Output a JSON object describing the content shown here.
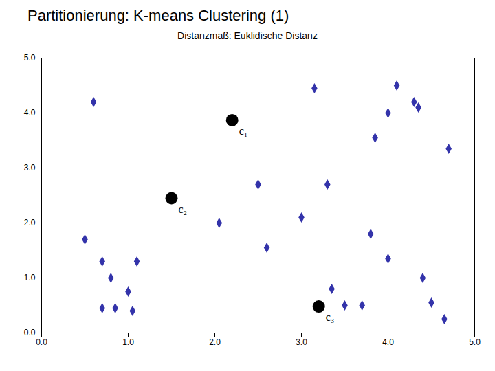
{
  "chart_data": {
    "type": "scatter",
    "title": "Partitionierung: K-means Clustering (1)",
    "subtitle": "Distanzmaß: Euklidische Distanz",
    "series": [
      {
        "color": "#3333AA",
        "marker": "diamond",
        "x": [
          0.5,
          0.7,
          0.8,
          0.7,
          0.85,
          1.0,
          1.05,
          1.1,
          0.6,
          2.05,
          2.5,
          2.6,
          3.0,
          3.15,
          3.3,
          3.35,
          3.5,
          3.7,
          3.8,
          3.85,
          4.0,
          4.0,
          4.1,
          4.3,
          4.35,
          4.4,
          4.5,
          4.7,
          4.65
        ],
        "y": [
          1.7,
          1.3,
          1.0,
          0.45,
          0.45,
          0.75,
          0.4,
          1.3,
          4.2,
          2.0,
          2.7,
          1.55,
          2.1,
          4.45,
          2.7,
          0.8,
          0.5,
          0.5,
          1.8,
          3.55,
          4.0,
          1.35,
          4.5,
          4.2,
          4.1,
          1.0,
          0.55,
          3.35,
          0.25
        ]
      },
      {
        "color": "#000000",
        "marker": "circle",
        "x": [
          2.2,
          1.5,
          3.2
        ],
        "y": [
          3.87,
          2.45,
          0.48
        ],
        "labels": [
          "c₁",
          "c₂",
          "c₃"
        ]
      }
    ],
    "xlim": [
      0,
      5
    ],
    "ylim": [
      0,
      5
    ],
    "xticks": [
      0,
      1,
      2,
      3,
      4,
      5
    ],
    "yticks": [
      0,
      1,
      2,
      3,
      4,
      5
    ],
    "grid": "y"
  }
}
